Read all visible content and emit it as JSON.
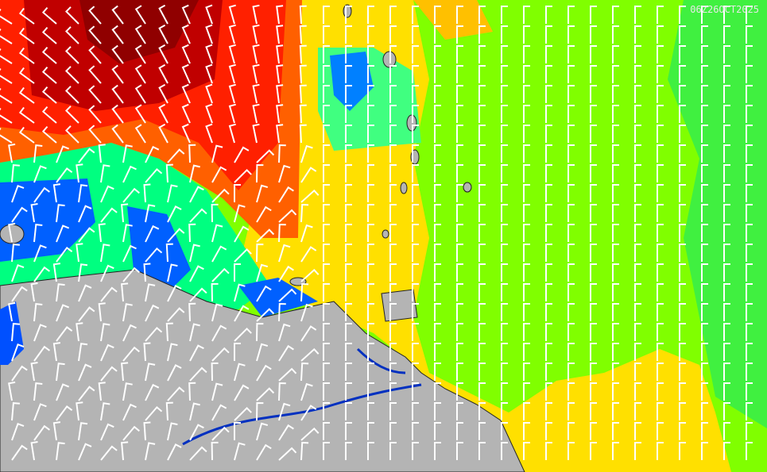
{
  "timestamp": "06Z26OCT2025"
}
